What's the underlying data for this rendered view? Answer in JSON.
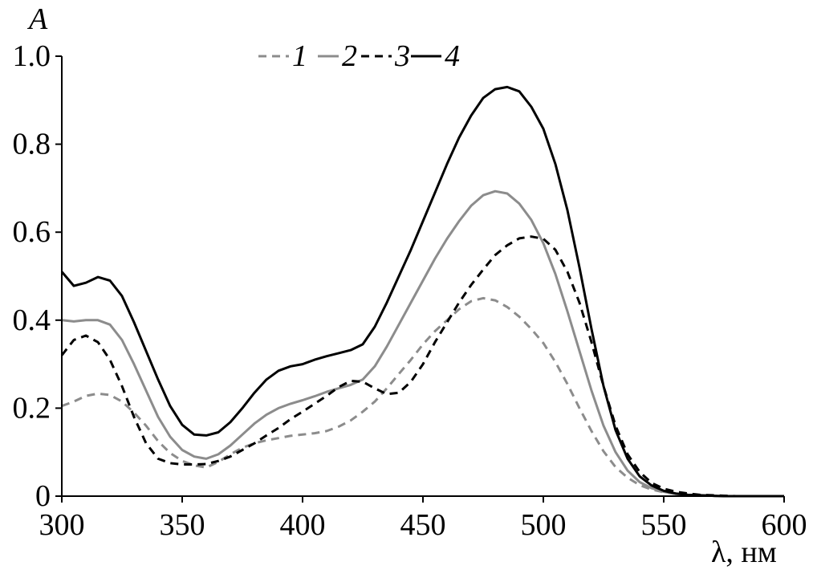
{
  "chart_data": {
    "type": "line",
    "title": "",
    "xlabel": "λ, нм",
    "ylabel": "A",
    "xlim": [
      300,
      600
    ],
    "ylim": [
      0,
      1.0
    ],
    "x_ticks": [
      "300",
      "350",
      "400",
      "450",
      "500",
      "550",
      "600"
    ],
    "y_ticks": [
      "0",
      "0.2",
      "0.4",
      "0.6",
      "0.8",
      "1.0"
    ],
    "grid": false,
    "legend_position": "top",
    "series": [
      {
        "name": "1",
        "color": "#8c8c8c",
        "dash": "dashed",
        "x": [
          300,
          305,
          310,
          315,
          320,
          325,
          330,
          335,
          340,
          345,
          350,
          355,
          360,
          365,
          370,
          375,
          380,
          385,
          390,
          395,
          400,
          405,
          410,
          415,
          420,
          425,
          430,
          435,
          440,
          445,
          450,
          455,
          460,
          465,
          470,
          475,
          480,
          485,
          490,
          495,
          500,
          505,
          510,
          515,
          520,
          525,
          530,
          535,
          540,
          545,
          550,
          555,
          560,
          565,
          570,
          575,
          580,
          590,
          600
        ],
        "y": [
          0.205,
          0.215,
          0.228,
          0.233,
          0.23,
          0.215,
          0.19,
          0.16,
          0.125,
          0.098,
          0.08,
          0.07,
          0.065,
          0.078,
          0.095,
          0.11,
          0.12,
          0.127,
          0.132,
          0.137,
          0.14,
          0.143,
          0.148,
          0.158,
          0.172,
          0.192,
          0.215,
          0.245,
          0.278,
          0.31,
          0.345,
          0.375,
          0.4,
          0.425,
          0.443,
          0.45,
          0.445,
          0.43,
          0.408,
          0.38,
          0.348,
          0.305,
          0.255,
          0.2,
          0.148,
          0.102,
          0.066,
          0.042,
          0.025,
          0.015,
          0.009,
          0.005,
          0.003,
          0.002,
          0.001,
          0.0,
          0.0,
          0.0,
          0.0
        ]
      },
      {
        "name": "2",
        "color": "#8c8c8c",
        "dash": "solid",
        "x": [
          300,
          305,
          310,
          315,
          320,
          325,
          330,
          335,
          340,
          345,
          350,
          355,
          360,
          365,
          370,
          375,
          380,
          385,
          390,
          395,
          400,
          405,
          410,
          415,
          420,
          425,
          430,
          435,
          440,
          445,
          450,
          455,
          460,
          465,
          470,
          475,
          480,
          485,
          490,
          495,
          500,
          505,
          510,
          515,
          520,
          525,
          530,
          535,
          540,
          545,
          550,
          555,
          560,
          565,
          570,
          575,
          580,
          590,
          600
        ],
        "y": [
          0.4,
          0.397,
          0.4,
          0.4,
          0.39,
          0.355,
          0.3,
          0.24,
          0.18,
          0.135,
          0.105,
          0.09,
          0.085,
          0.095,
          0.115,
          0.14,
          0.165,
          0.185,
          0.2,
          0.21,
          0.218,
          0.227,
          0.237,
          0.245,
          0.253,
          0.265,
          0.295,
          0.34,
          0.39,
          0.44,
          0.49,
          0.54,
          0.585,
          0.625,
          0.66,
          0.684,
          0.693,
          0.688,
          0.665,
          0.628,
          0.575,
          0.505,
          0.42,
          0.33,
          0.24,
          0.16,
          0.1,
          0.058,
          0.032,
          0.018,
          0.01,
          0.005,
          0.003,
          0.002,
          0.001,
          0.0,
          0.0,
          0.0,
          0.0
        ]
      },
      {
        "name": "3",
        "color": "#000000",
        "dash": "dashed",
        "x": [
          300,
          305,
          310,
          315,
          320,
          325,
          330,
          335,
          340,
          345,
          350,
          355,
          360,
          365,
          370,
          375,
          380,
          385,
          390,
          395,
          400,
          405,
          410,
          415,
          420,
          425,
          430,
          435,
          440,
          445,
          450,
          455,
          460,
          465,
          470,
          475,
          480,
          485,
          490,
          495,
          500,
          505,
          510,
          515,
          520,
          525,
          530,
          535,
          540,
          545,
          550,
          555,
          560,
          565,
          570,
          575,
          580,
          590,
          600
        ],
        "y": [
          0.32,
          0.355,
          0.365,
          0.35,
          0.31,
          0.25,
          0.18,
          0.12,
          0.085,
          0.075,
          0.072,
          0.072,
          0.073,
          0.08,
          0.09,
          0.105,
          0.12,
          0.138,
          0.155,
          0.175,
          0.192,
          0.21,
          0.228,
          0.248,
          0.262,
          0.26,
          0.245,
          0.232,
          0.235,
          0.26,
          0.3,
          0.35,
          0.395,
          0.44,
          0.48,
          0.515,
          0.548,
          0.57,
          0.586,
          0.59,
          0.585,
          0.56,
          0.51,
          0.44,
          0.35,
          0.25,
          0.16,
          0.095,
          0.055,
          0.03,
          0.017,
          0.01,
          0.006,
          0.003,
          0.002,
          0.001,
          0.0,
          0.0,
          0.0
        ]
      },
      {
        "name": "4",
        "color": "#000000",
        "dash": "solid",
        "x": [
          300,
          305,
          310,
          315,
          320,
          325,
          330,
          335,
          340,
          345,
          350,
          355,
          360,
          365,
          370,
          375,
          380,
          385,
          390,
          395,
          400,
          405,
          410,
          415,
          420,
          425,
          430,
          435,
          440,
          445,
          450,
          455,
          460,
          465,
          470,
          475,
          480,
          485,
          490,
          495,
          500,
          505,
          510,
          515,
          520,
          525,
          530,
          535,
          540,
          545,
          550,
          555,
          560,
          565,
          570,
          575,
          580,
          590,
          600
        ],
        "y": [
          0.51,
          0.478,
          0.485,
          0.498,
          0.49,
          0.455,
          0.395,
          0.33,
          0.265,
          0.205,
          0.162,
          0.14,
          0.138,
          0.145,
          0.168,
          0.2,
          0.235,
          0.265,
          0.285,
          0.295,
          0.3,
          0.31,
          0.318,
          0.325,
          0.332,
          0.345,
          0.385,
          0.44,
          0.5,
          0.56,
          0.625,
          0.69,
          0.755,
          0.815,
          0.865,
          0.905,
          0.925,
          0.93,
          0.92,
          0.885,
          0.835,
          0.755,
          0.65,
          0.52,
          0.38,
          0.25,
          0.15,
          0.085,
          0.045,
          0.024,
          0.012,
          0.006,
          0.003,
          0.002,
          0.001,
          0.0,
          0.0,
          0.0,
          0.0
        ]
      }
    ]
  }
}
